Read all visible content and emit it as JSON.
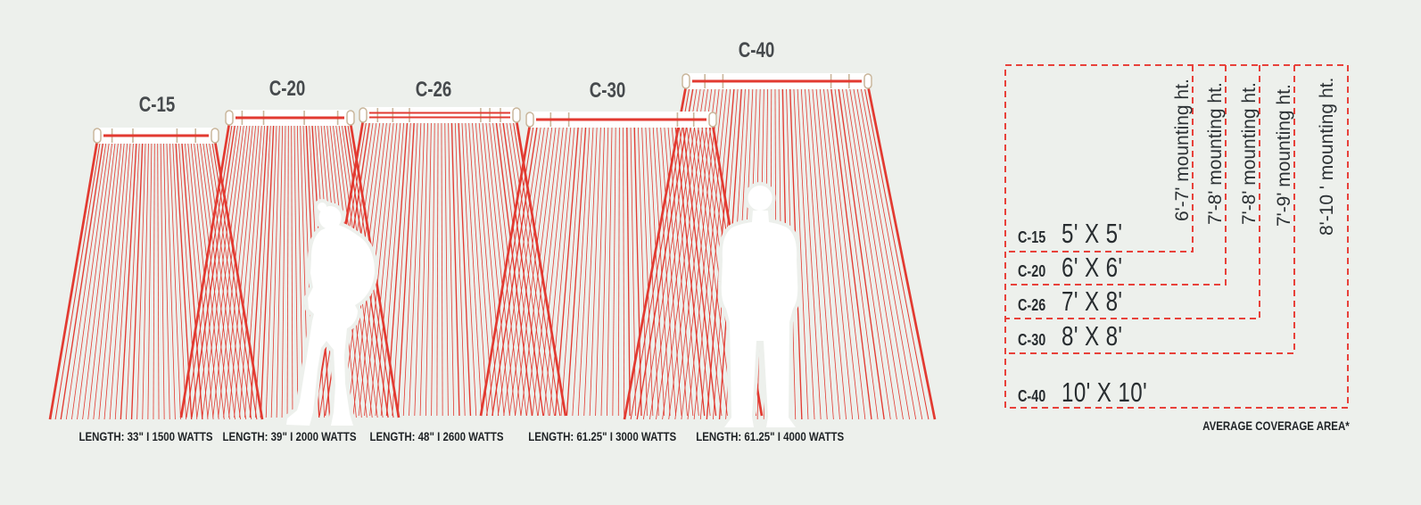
{
  "units": [
    {
      "name": "C-15",
      "spec": "LENGTH: 33\" I 1500 WATTS"
    },
    {
      "name": "C-20",
      "spec": "LENGTH: 39\" I 2000 WATTS"
    },
    {
      "name": "C-26",
      "spec": "LENGTH: 48\" I 2600 WATTS"
    },
    {
      "name": "C-30",
      "spec": "LENGTH: 61.25\" I 3000 WATTS"
    },
    {
      "name": "C-40",
      "spec": "LENGTH: 61.25\" I 4000 WATTS"
    }
  ],
  "coverage": {
    "rows": [
      {
        "model": "C-15",
        "area": "5' X 5'",
        "mount": "6'-7' mounting ht."
      },
      {
        "model": "C-20",
        "area": "6' X 6'",
        "mount": "7'-8' mounting ht."
      },
      {
        "model": "C-26",
        "area": "7' X 8'",
        "mount": "7'-8' mounting ht."
      },
      {
        "model": "C-30",
        "area": "8' X 8'",
        "mount": "7'-9' mounting ht."
      },
      {
        "model": "C-40",
        "area": "10' X 10'",
        "mount": "8'-10 ' mounting ht."
      }
    ],
    "footnote": "AVERAGE COVERAGE AREA*"
  },
  "colors": {
    "background": "#edf0ec",
    "beam_red": "#e23a31",
    "dash_red": "#e8413a",
    "bracket_tan": "#c9b69b"
  }
}
